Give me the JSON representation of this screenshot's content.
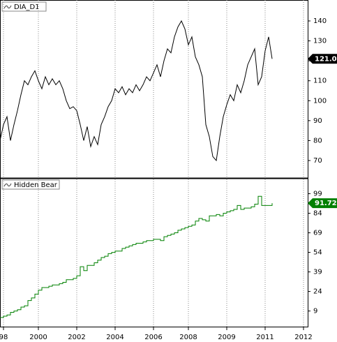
{
  "chart_data": [
    {
      "type": "line",
      "title": "DIA_D1",
      "color": "#000000",
      "values": [
        80,
        88,
        92,
        80,
        88,
        95,
        103,
        110,
        108,
        112,
        115,
        110,
        106,
        112,
        108,
        111,
        108,
        110,
        106,
        100,
        96,
        97,
        95,
        88,
        80,
        87,
        77,
        82,
        78,
        88,
        92,
        97,
        100,
        106,
        104,
        107,
        103,
        106,
        104,
        108,
        105,
        108,
        112,
        110,
        114,
        118,
        112,
        120,
        126,
        124,
        132,
        137,
        140,
        136,
        128,
        132,
        122,
        118,
        112,
        88,
        82,
        72,
        70,
        82,
        92,
        98,
        103,
        100,
        108,
        104,
        110,
        118,
        122,
        126,
        108,
        112,
        125,
        132,
        121
      ],
      "ylim": [
        61.6,
        150.5
      ],
      "yticks": [
        70,
        80,
        90,
        100,
        110,
        120,
        130,
        140
      ],
      "price_tag": {
        "value": 121,
        "label": "121.0"
      }
    },
    {
      "type": "step",
      "title": "Hidden Bear",
      "color": "#008000",
      "values": [
        4,
        5,
        6,
        8,
        9,
        10,
        12,
        13,
        17,
        19,
        22,
        25,
        27,
        27,
        28,
        29,
        29,
        30,
        31,
        33,
        33,
        34,
        36,
        43,
        40,
        44,
        44,
        46,
        48,
        50,
        51,
        53,
        54,
        55,
        55,
        57,
        58,
        59,
        60,
        61,
        61,
        62,
        63,
        63,
        64,
        64,
        63,
        66,
        67,
        68,
        69,
        71,
        72,
        73,
        74,
        75,
        78,
        80,
        79,
        78,
        82,
        82,
        83,
        82,
        84,
        85,
        86,
        87,
        90,
        87,
        88,
        88,
        89,
        91,
        97,
        90,
        90,
        90,
        91.72
      ],
      "ylim": [
        -3,
        110
      ],
      "yticks": [
        9,
        24,
        39,
        54,
        69,
        84,
        99
      ],
      "price_tag": {
        "value": 91.72,
        "label": "91.72"
      },
      "xlim": [
        0,
        88
      ],
      "xticks": [
        {
          "value": 1,
          "label": "98"
        },
        {
          "value": 11,
          "label": "2000"
        },
        {
          "value": 22,
          "label": "2002"
        },
        {
          "value": 33,
          "label": "2004"
        },
        {
          "value": 44,
          "label": "2006"
        },
        {
          "value": 54,
          "label": "2008"
        },
        {
          "value": 65,
          "label": "2009"
        },
        {
          "value": 76,
          "label": "2011"
        },
        {
          "value": 87,
          "label": "2012"
        }
      ]
    }
  ]
}
